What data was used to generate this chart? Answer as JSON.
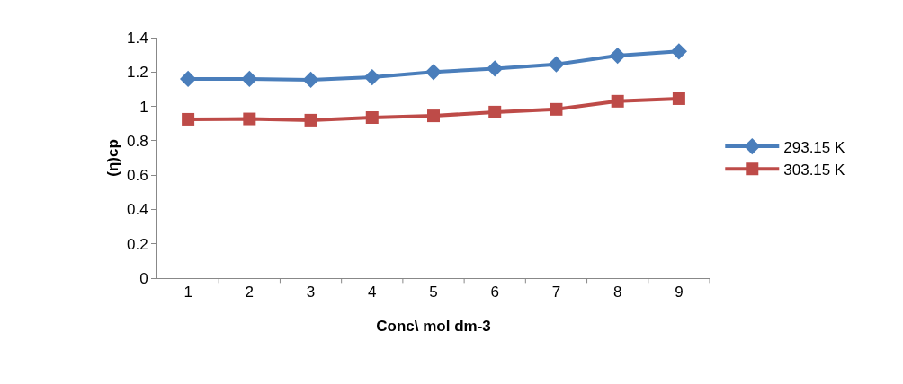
{
  "chart_data": {
    "type": "line",
    "xlabel": "Conc\\ mol dm-3",
    "ylabel": "(η)cp",
    "categories": [
      "1",
      "2",
      "3",
      "4",
      "5",
      "6",
      "7",
      "8",
      "9"
    ],
    "ylim": [
      0,
      1.4
    ],
    "yticks": [
      0,
      0.2,
      0.4,
      0.6,
      0.8,
      1,
      1.2,
      1.4
    ],
    "grid": false,
    "legend": "right",
    "line_style": "solid",
    "series": [
      {
        "name": "293.15 K",
        "color": "#4a7ebb",
        "marker": "diamond",
        "values": [
          1.16,
          1.16,
          1.155,
          1.17,
          1.2,
          1.22,
          1.245,
          1.295,
          1.32
        ]
      },
      {
        "name": "303.15 K",
        "color": "#be4b48",
        "marker": "square",
        "values": [
          0.925,
          0.927,
          0.92,
          0.935,
          0.945,
          0.967,
          0.983,
          1.03,
          1.045
        ]
      }
    ]
  }
}
